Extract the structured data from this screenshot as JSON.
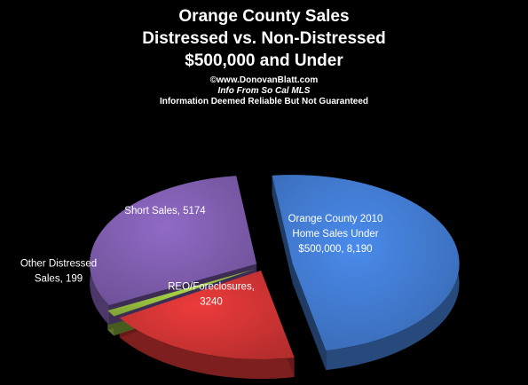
{
  "chart_data": {
    "type": "pie",
    "title_lines": [
      "Orange County Sales",
      "Distressed vs. Non-Distressed",
      "$500,000 and Under"
    ],
    "subtitle_lines": [
      "©www.DonovanBlatt.com",
      "Info  From So Cal MLS",
      "Information Deemed Reliable But Not Guaranteed"
    ],
    "slices": [
      {
        "name": "Orange County    2010 Home  Sales Under $500,000",
        "value": 8190,
        "color": "#3f76c8",
        "label_lines": [
          "Orange County    2010",
          "Home  Sales Under",
          "$500,000, 8,190"
        ]
      },
      {
        "name": "REO/Foreclosures",
        "value": 3240,
        "color": "#c93232",
        "label_lines": [
          "REO/Foreclosures,",
          "3240"
        ]
      },
      {
        "name": "Other Distressed Sales",
        "value": 199,
        "color": "#8fb63c",
        "label_lines": [
          "Other Distressed",
          "Sales, 199"
        ]
      },
      {
        "name": "Short Sales",
        "value": 5174,
        "color": "#7a5aa8",
        "label_lines": [
          "Short Sales, 5174"
        ]
      }
    ]
  }
}
